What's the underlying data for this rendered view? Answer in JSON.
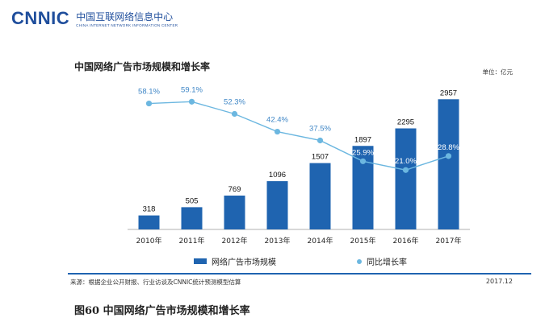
{
  "header": {
    "logo": "CNNIC",
    "org_cn": "中国互联网络信息中心",
    "org_en": "CHINA INTERNET NETWORK INFORMATION CENTER"
  },
  "chart_title": "中国网络广告市场规模和增长率",
  "unit": "单位：亿元",
  "chart_data": {
    "type": "bar+line",
    "title": "中国网络广告市场规模和增长率",
    "categories": [
      "2010年",
      "2011年",
      "2012年",
      "2013年",
      "2014年",
      "2015年",
      "2016年",
      "2017年"
    ],
    "series": [
      {
        "name": "网络广告市场规模",
        "kind": "bar",
        "values": [
          318,
          505,
          769,
          1096,
          1507,
          1897,
          2295,
          2957
        ],
        "labels": [
          "318",
          "505",
          "769",
          "1096",
          "1507",
          "1897",
          "2295",
          "2957"
        ]
      },
      {
        "name": "同比增长率",
        "kind": "line",
        "values": [
          58.1,
          59.1,
          52.3,
          42.4,
          37.5,
          25.9,
          21.0,
          28.8
        ],
        "labels": [
          "58.1%",
          "59.1%",
          "52.3%",
          "42.4%",
          "37.5%",
          "25.9%",
          "21.0%",
          "28.8%"
        ]
      }
    ],
    "bar_ylim": [
      0,
      3200
    ],
    "line_ylim": [
      0,
      80
    ],
    "legend_position": "bottom",
    "colors": {
      "bar": "#1f64b0",
      "line": "#6cb7e0",
      "line_label": "#3e86c6"
    }
  },
  "legend": {
    "bar_label": "网络广告市场规模",
    "line_label": "同比增长率"
  },
  "source": "来源：根据企业公开财报、行业访谈及CNNIC统计预测模型估算",
  "date": "2017.12",
  "caption": "图60 中国网络广告市场规模和增长率"
}
